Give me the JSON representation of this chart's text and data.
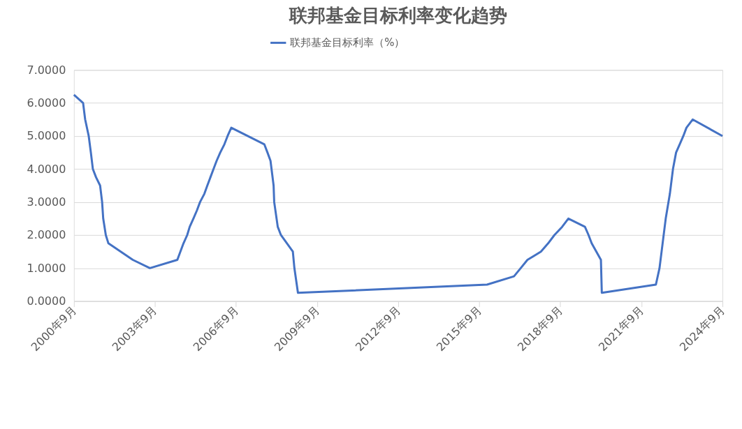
{
  "chart_data": {
    "type": "line",
    "title": "联邦基金目标利率变化趋势",
    "x": [
      "2000-09-01",
      "2001-01-03",
      "2001-01-31",
      "2001-03-20",
      "2001-04-18",
      "2001-05-15",
      "2001-06-27",
      "2001-08-21",
      "2001-09-17",
      "2001-10-02",
      "2001-11-06",
      "2001-12-11",
      "2002-11-06",
      "2003-06-25",
      "2004-06-30",
      "2004-08-10",
      "2004-09-21",
      "2004-11-10",
      "2004-12-14",
      "2005-02-02",
      "2005-03-22",
      "2005-05-03",
      "2005-06-30",
      "2005-08-09",
      "2005-09-20",
      "2005-11-01",
      "2005-12-13",
      "2006-01-31",
      "2006-03-28",
      "2006-05-10",
      "2006-06-29",
      "2007-09-18",
      "2007-10-31",
      "2007-12-11",
      "2008-01-22",
      "2008-01-30",
      "2008-03-18",
      "2008-04-30",
      "2008-10-08",
      "2008-10-29",
      "2008-12-16",
      "2015-12-16",
      "2016-12-14",
      "2017-03-15",
      "2017-06-14",
      "2017-12-13",
      "2018-03-21",
      "2018-06-13",
      "2018-09-26",
      "2018-12-19",
      "2019-07-31",
      "2019-09-18",
      "2019-10-30",
      "2020-03-03",
      "2020-03-15",
      "2022-03-16",
      "2022-05-04",
      "2022-06-15",
      "2022-07-27",
      "2022-09-21",
      "2022-11-02",
      "2022-12-14",
      "2023-02-01",
      "2023-03-22",
      "2023-05-03",
      "2023-07-26",
      "2024-09-01"
    ],
    "series": [
      {
        "name": "联邦基金目标利率（%）",
        "color": "#4472c4",
        "values": [
          6.25,
          6.0,
          5.5,
          5.0,
          4.5,
          4.0,
          3.75,
          3.5,
          3.0,
          2.5,
          2.0,
          1.75,
          1.25,
          1.0,
          1.25,
          1.5,
          1.75,
          2.0,
          2.25,
          2.5,
          2.75,
          3.0,
          3.25,
          3.5,
          3.75,
          4.0,
          4.25,
          4.5,
          4.75,
          5.0,
          5.25,
          4.75,
          4.5,
          4.25,
          3.5,
          3.0,
          2.25,
          2.0,
          1.5,
          1.0,
          0.25,
          0.5,
          0.75,
          1.0,
          1.25,
          1.5,
          1.75,
          2.0,
          2.25,
          2.5,
          2.25,
          2.0,
          1.75,
          1.25,
          0.25,
          0.5,
          1.0,
          1.75,
          2.5,
          3.25,
          4.0,
          4.5,
          4.75,
          5.0,
          5.25,
          5.5,
          5.0
        ]
      }
    ],
    "xlim": [
      "2000-09",
      "2024-09"
    ],
    "xticks": [
      {
        "value": "2000-09",
        "label": "2000年9月"
      },
      {
        "value": "2003-09",
        "label": "2003年9月"
      },
      {
        "value": "2006-09",
        "label": "2006年9月"
      },
      {
        "value": "2009-09",
        "label": "2009年9月"
      },
      {
        "value": "2012-09",
        "label": "2012年9月"
      },
      {
        "value": "2015-09",
        "label": "2015年9月"
      },
      {
        "value": "2018-09",
        "label": "2018年9月"
      },
      {
        "value": "2021-09",
        "label": "2021年9月"
      },
      {
        "value": "2024-09",
        "label": "2024年9月"
      }
    ],
    "ylim": [
      0,
      7
    ],
    "yticks": [
      {
        "value": 0,
        "label": "0.0000"
      },
      {
        "value": 1,
        "label": "1.0000"
      },
      {
        "value": 2,
        "label": "2.0000"
      },
      {
        "value": 3,
        "label": "3.0000"
      },
      {
        "value": 4,
        "label": "4.0000"
      },
      {
        "value": 5,
        "label": "5.0000"
      },
      {
        "value": 6,
        "label": "6.0000"
      },
      {
        "value": 7,
        "label": "7.0000"
      }
    ],
    "grid": "y",
    "legend": "top",
    "marker": "none",
    "line_style": "solid"
  }
}
